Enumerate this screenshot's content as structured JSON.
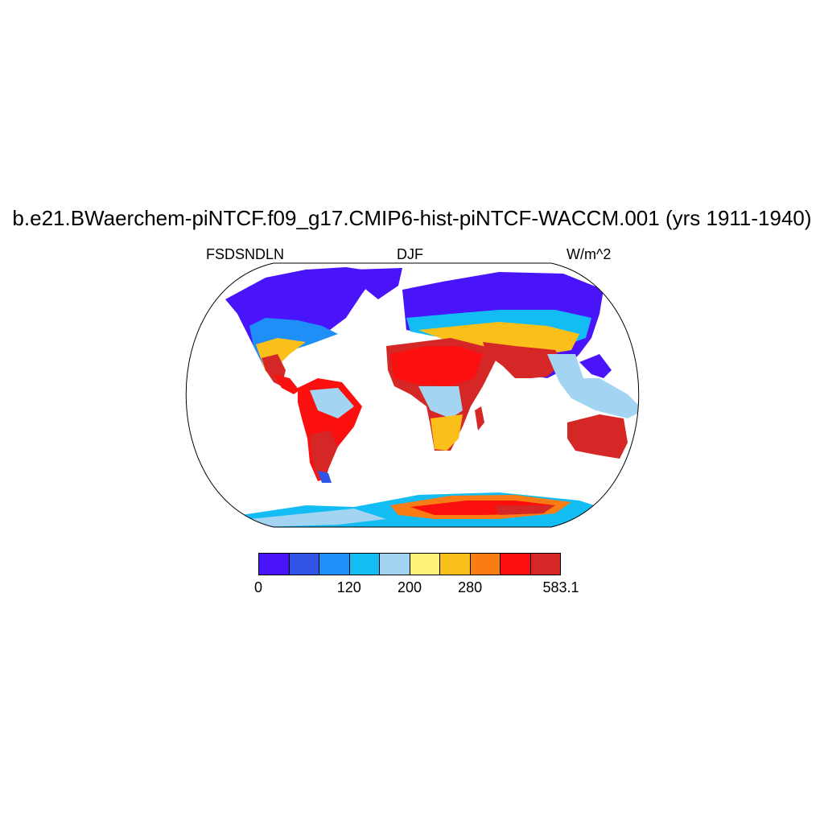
{
  "title": "b.e21.BWaerchem-piNTCF.f09_g17.CMIP6-hist-piNTCF-WACCM.001 (yrs 1911-1940)",
  "subtitle_left": "FSDSNDLN",
  "subtitle_center": "DJF",
  "subtitle_right": "W/m^2",
  "colorbar": {
    "colors": [
      "#4a14fb",
      "#2f54e6",
      "#1e8ff7",
      "#14bcf4",
      "#a3d5f2",
      "#fff27a",
      "#fbbf1a",
      "#f97c14",
      "#fb0f0f",
      "#d62727"
    ],
    "labels": [
      {
        "text": "0",
        "index": 0
      },
      {
        "text": "120",
        "index": 3
      },
      {
        "text": "200",
        "index": 5
      },
      {
        "text": "280",
        "index": 7
      },
      {
        "text": "583.1",
        "index": 10
      }
    ]
  }
}
